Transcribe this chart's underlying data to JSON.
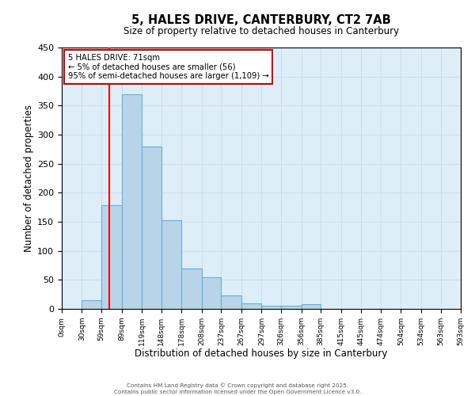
{
  "title": "5, HALES DRIVE, CANTERBURY, CT2 7AB",
  "subtitle": "Size of property relative to detached houses in Canterbury",
  "bar_left_edges": [
    0,
    30,
    59,
    89,
    119,
    148,
    178,
    208,
    237,
    267,
    297,
    326,
    356,
    385,
    415,
    445,
    474,
    504,
    534,
    563
  ],
  "bar_widths": [
    30,
    29,
    30,
    30,
    29,
    30,
    30,
    29,
    30,
    30,
    29,
    30,
    29,
    30,
    30,
    29,
    30,
    30,
    29,
    30
  ],
  "bar_heights": [
    0,
    15,
    178,
    370,
    280,
    153,
    70,
    55,
    23,
    10,
    5,
    5,
    8,
    0,
    0,
    0,
    0,
    0,
    0,
    0
  ],
  "xlim": [
    0,
    593
  ],
  "ylim": [
    0,
    450
  ],
  "xlabel": "Distribution of detached houses by size in Canterbury",
  "ylabel": "Number of detached properties",
  "xtick_labels": [
    "0sqm",
    "30sqm",
    "59sqm",
    "89sqm",
    "119sqm",
    "148sqm",
    "178sqm",
    "208sqm",
    "237sqm",
    "267sqm",
    "297sqm",
    "326sqm",
    "356sqm",
    "385sqm",
    "415sqm",
    "445sqm",
    "474sqm",
    "504sqm",
    "534sqm",
    "563sqm",
    "593sqm"
  ],
  "xtick_positions": [
    0,
    30,
    59,
    89,
    119,
    148,
    178,
    208,
    237,
    267,
    297,
    326,
    356,
    385,
    415,
    445,
    474,
    504,
    534,
    563,
    593
  ],
  "ytick_positions": [
    0,
    50,
    100,
    150,
    200,
    250,
    300,
    350,
    400,
    450
  ],
  "bar_facecolor": "#b8d4e8",
  "bar_edgecolor": "#6baed6",
  "grid_color": "#ccddee",
  "bg_color": "#ddeef8",
  "red_line_x": 71,
  "annotation_title": "5 HALES DRIVE: 71sqm",
  "annotation_line1": "← 5% of detached houses are smaller (56)",
  "annotation_line2": "95% of semi-detached houses are larger (1,109) →",
  "annotation_box_color": "#cc0000",
  "footer1": "Contains HM Land Registry data © Crown copyright and database right 2025.",
  "footer2": "Contains public sector information licensed under the Open Government Licence v3.0."
}
